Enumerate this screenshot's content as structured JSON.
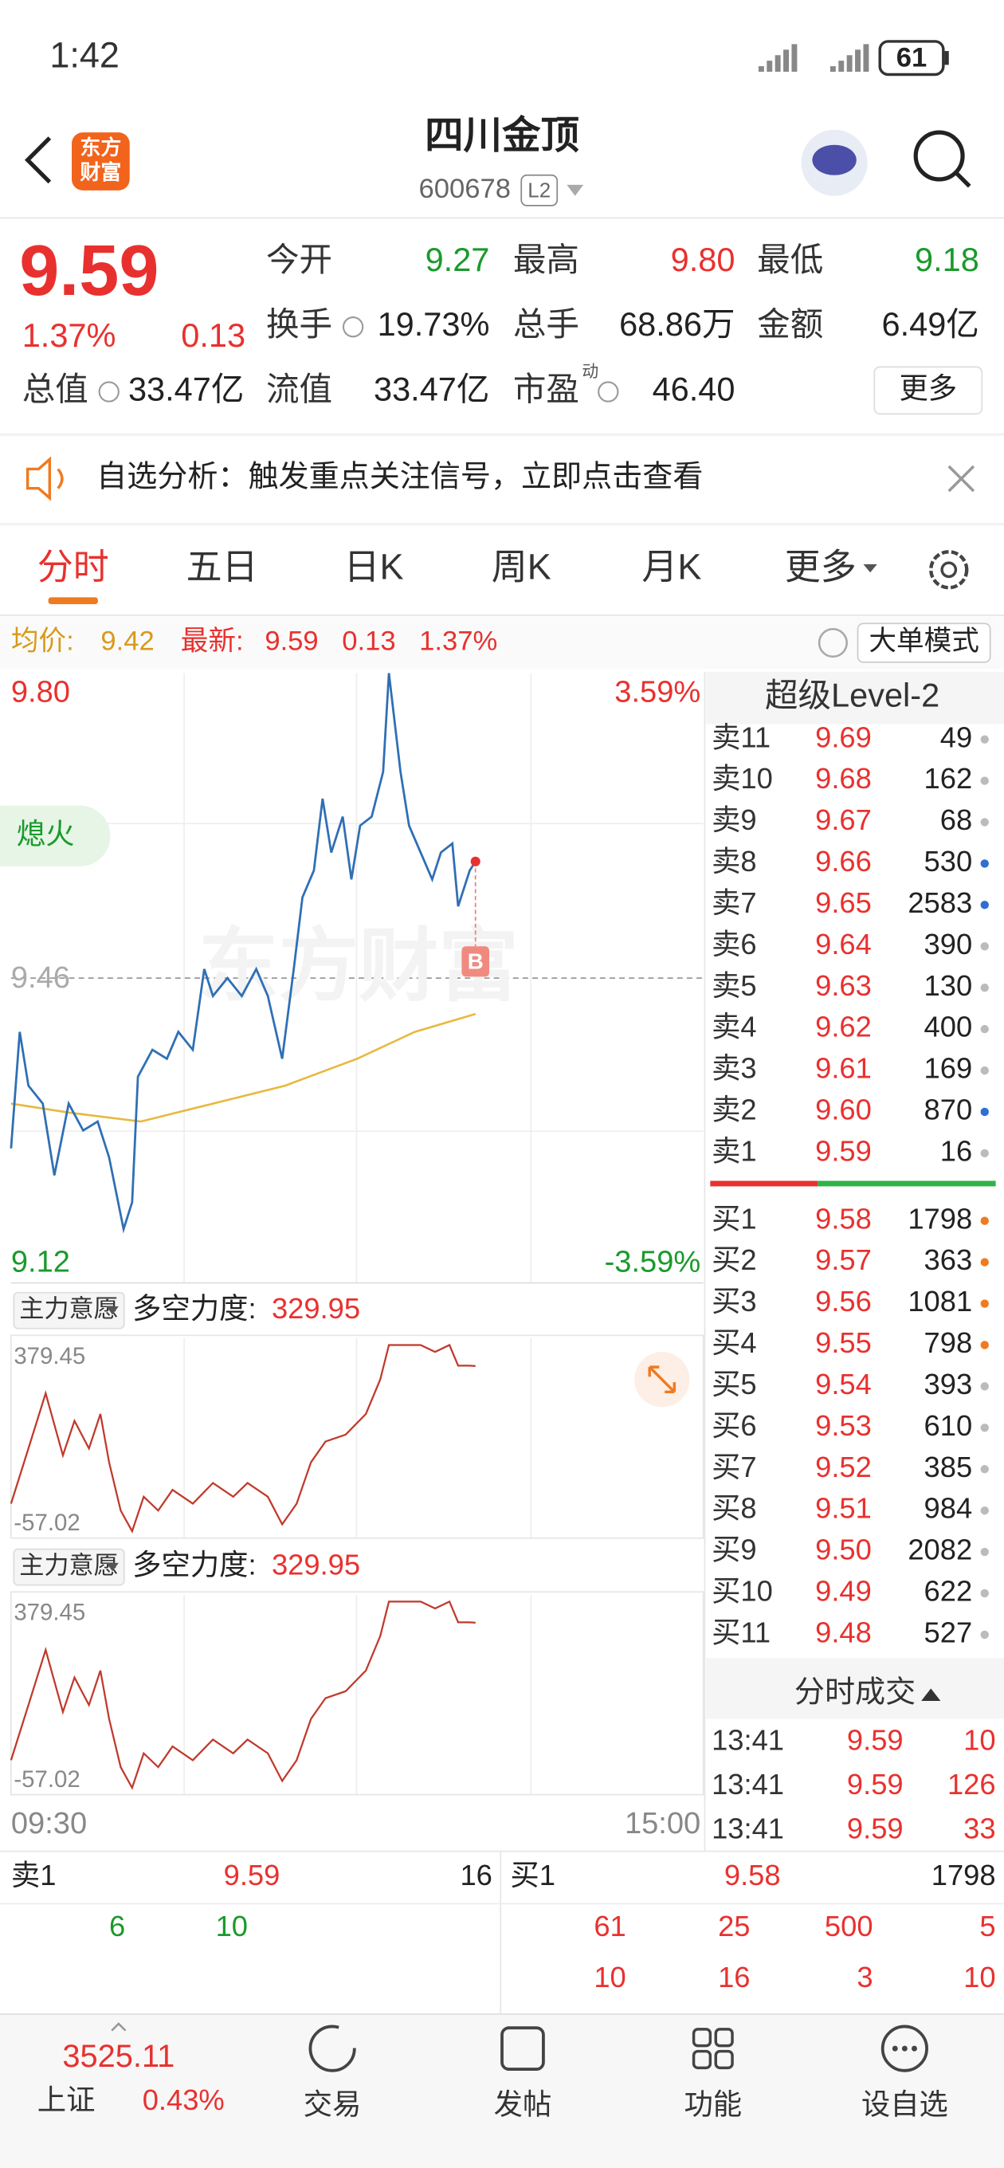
{
  "status_bar": {
    "time": "1:42",
    "battery": "61"
  },
  "header": {
    "logo": [
      "东方",
      "财富"
    ],
    "title": "四川金顶",
    "code": "600678",
    "level": "L2"
  },
  "quote": {
    "price": "9.59",
    "change_pct": "1.37%",
    "change": "0.13",
    "stats": [
      {
        "label": "今开",
        "value": "9.27",
        "color": "#1a9a2c"
      },
      {
        "label": "最高",
        "value": "9.80",
        "color": "#e8312f"
      },
      {
        "label": "最低",
        "value": "9.18",
        "color": "#1a9a2c"
      },
      {
        "label": "换手",
        "value": "19.73%",
        "info": true
      },
      {
        "label": "总手",
        "value": "68.86万"
      },
      {
        "label": "金额",
        "value": "6.49亿"
      },
      {
        "label": "总值",
        "value": "33.47亿",
        "info": true
      },
      {
        "label": "流值",
        "value": "33.47亿"
      },
      {
        "label": "市盈",
        "value": "46.40",
        "info": true,
        "sup": "动"
      }
    ],
    "more": "更多"
  },
  "notice": {
    "text": "自选分析：触发重点关注信号，立即点击查看"
  },
  "tabs": {
    "items": [
      "分时",
      "五日",
      "日K",
      "周K",
      "月K",
      "更多"
    ],
    "active": 0
  },
  "info_bar": {
    "avg_label": "均价:",
    "avg": "9.42",
    "latest_label": "最新:",
    "latest": "9.59",
    "change": "0.13",
    "change_pct": "1.37%",
    "mode": "大单模式"
  },
  "price_chart": {
    "y_top": "9.80",
    "y_mid": "9.46",
    "y_bottom": "9.12",
    "pct_top": "3.59%",
    "pct_bottom": "-3.59%",
    "ylim": [
      9.12,
      9.8
    ],
    "prev_close": 9.46,
    "xlim": [
      0,
      240
    ],
    "minutes": [
      0,
      3,
      6,
      11,
      15,
      20,
      25,
      30,
      34,
      39,
      42,
      44,
      49,
      54,
      58,
      63,
      67,
      70,
      75,
      80,
      85,
      89,
      94,
      98,
      101,
      105,
      108,
      111,
      115,
      118,
      121,
      125,
      129,
      131,
      135,
      138,
      142,
      146,
      149,
      153,
      155,
      159,
      161
    ],
    "prices": [
      9.27,
      9.4,
      9.34,
      9.32,
      9.24,
      9.32,
      9.29,
      9.3,
      9.26,
      9.18,
      9.21,
      9.35,
      9.38,
      9.37,
      9.4,
      9.38,
      9.47,
      9.44,
      9.46,
      9.44,
      9.47,
      9.44,
      9.37,
      9.47,
      9.55,
      9.58,
      9.66,
      9.6,
      9.64,
      9.57,
      9.63,
      9.64,
      9.69,
      9.8,
      9.69,
      9.63,
      9.6,
      9.57,
      9.6,
      9.61,
      9.54,
      9.58,
      9.59
    ],
    "avg_minutes": [
      0,
      20,
      45,
      70,
      95,
      120,
      140,
      161
    ],
    "avg": [
      9.32,
      9.31,
      9.3,
      9.32,
      9.34,
      9.37,
      9.4,
      9.42
    ],
    "badge": "熄火",
    "marker": "B",
    "watermark": "东方财富",
    "time_labels": [
      "09:30",
      "15:00"
    ]
  },
  "indicator": {
    "ylim": [
      -57.02,
      379.45
    ],
    "xlim": [
      0,
      240
    ],
    "minutes": [
      0,
      6,
      12,
      18,
      22,
      27,
      31,
      34,
      38,
      42,
      46,
      51,
      56,
      63,
      70,
      77,
      82,
      89,
      94,
      99,
      104,
      109,
      116,
      123,
      128,
      131,
      137,
      142,
      147,
      152,
      155,
      159,
      161
    ],
    "values": [
      7.6,
      136.9,
      266.3,
      120.8,
      201.6,
      136.9,
      217.8,
      104.6,
      -8.5,
      -57.02,
      23.8,
      -8.5,
      39.9,
      7.6,
      56.2,
      23.8,
      56.2,
      23.8,
      -40.8,
      7.6,
      104.6,
      153.1,
      169.3,
      217.8,
      298.6,
      379.45,
      379.45,
      379.45,
      363.3,
      379.45,
      331.0,
      331.0,
      329.95
    ],
    "panels": [
      {
        "selector": "主力意愿",
        "label": "多空力度:",
        "value": "329.95",
        "max": "379.45",
        "min": "-57.02"
      },
      {
        "selector": "主力意愿",
        "label": "多空力度:",
        "value": "329.95",
        "max": "379.45",
        "min": "-57.02"
      }
    ]
  },
  "order_book": {
    "title": "超级Level-2",
    "asks": [
      {
        "label": "卖11",
        "price": "9.69",
        "volume": "49",
        "dot": "#bbbbbb"
      },
      {
        "label": "卖10",
        "price": "9.68",
        "volume": "162",
        "dot": "#bbbbbb"
      },
      {
        "label": "卖9",
        "price": "9.67",
        "volume": "68",
        "dot": "#bbbbbb"
      },
      {
        "label": "卖8",
        "price": "9.66",
        "volume": "530",
        "dot": "#2f6fd0"
      },
      {
        "label": "卖7",
        "price": "9.65",
        "volume": "2583",
        "dot": "#2f6fd0"
      },
      {
        "label": "卖6",
        "price": "9.64",
        "volume": "390",
        "dot": "#bbbbbb"
      },
      {
        "label": "卖5",
        "price": "9.63",
        "volume": "130",
        "dot": "#bbbbbb"
      },
      {
        "label": "卖4",
        "price": "9.62",
        "volume": "400",
        "dot": "#bbbbbb"
      },
      {
        "label": "卖3",
        "price": "9.61",
        "volume": "169",
        "dot": "#bbbbbb"
      },
      {
        "label": "卖2",
        "price": "9.60",
        "volume": "870",
        "dot": "#2f6fd0"
      },
      {
        "label": "卖1",
        "price": "9.59",
        "volume": "16",
        "dot": "#bbbbbb"
      }
    ],
    "bids": [
      {
        "label": "买1",
        "price": "9.58",
        "volume": "1798",
        "dot": "#f07a20"
      },
      {
        "label": "买2",
        "price": "9.57",
        "volume": "363",
        "dot": "#f07a20"
      },
      {
        "label": "买3",
        "price": "9.56",
        "volume": "1081",
        "dot": "#f07a20"
      },
      {
        "label": "买4",
        "price": "9.55",
        "volume": "798",
        "dot": "#f07a20"
      },
      {
        "label": "买5",
        "price": "9.54",
        "volume": "393",
        "dot": "#bbbbbb"
      },
      {
        "label": "买6",
        "price": "9.53",
        "volume": "610",
        "dot": "#bbbbbb"
      },
      {
        "label": "买7",
        "price": "9.52",
        "volume": "385",
        "dot": "#bbbbbb"
      },
      {
        "label": "买8",
        "price": "9.51",
        "volume": "984",
        "dot": "#bbbbbb"
      },
      {
        "label": "买9",
        "price": "9.50",
        "volume": "2082",
        "dot": "#bbbbbb"
      },
      {
        "label": "买10",
        "price": "9.49",
        "volume": "622",
        "dot": "#bbbbbb"
      },
      {
        "label": "买11",
        "price": "9.48",
        "volume": "527",
        "dot": "#bbbbbb"
      }
    ]
  },
  "trades": {
    "title": "分时成交",
    "rows": [
      [
        "13:41",
        "9.59",
        "10"
      ],
      [
        "13:41",
        "9.59",
        "126"
      ],
      [
        "13:41",
        "9.59",
        "33"
      ]
    ]
  },
  "bottom": {
    "sell": {
      "label": "卖1",
      "price": "9.59",
      "volume": "16"
    },
    "buy": {
      "label": "买1",
      "price": "9.58",
      "volume": "1798"
    },
    "sell_queue": [
      "6",
      "10"
    ],
    "buy_queue": [
      [
        "61",
        "25",
        "500",
        "5"
      ],
      [
        "10",
        "16",
        "3",
        "10"
      ]
    ]
  },
  "nav": {
    "index": {
      "value": "3525.11",
      "name": "上证",
      "change_pct": "0.43%"
    },
    "items": [
      "交易",
      "发帖",
      "功能",
      "设自选"
    ]
  }
}
